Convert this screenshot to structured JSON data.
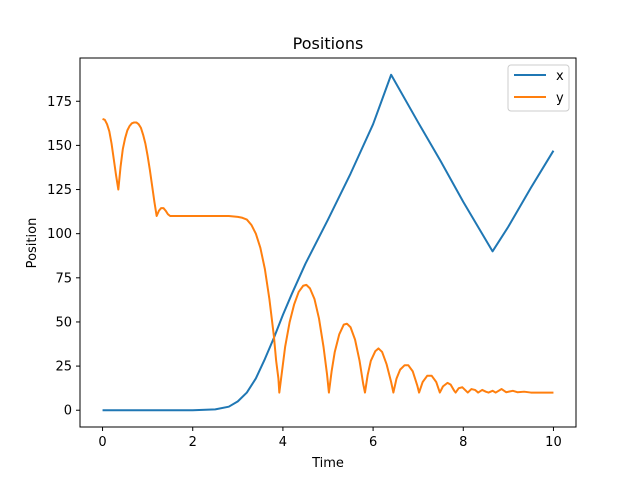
{
  "chart_data": {
    "type": "line",
    "title": "Positions",
    "xlabel": "Time",
    "ylabel": "Position",
    "xlim": [
      -0.5,
      10.5
    ],
    "ylim": [
      -9.5,
      199.5
    ],
    "xticks": [
      0,
      2,
      4,
      6,
      8,
      10
    ],
    "yticks": [
      0,
      25,
      50,
      75,
      100,
      125,
      150,
      175
    ],
    "grid": false,
    "legend_position": "top-right",
    "series": [
      {
        "name": "x",
        "color": "#1f77b4",
        "points": [
          [
            0,
            0
          ],
          [
            1,
            0
          ],
          [
            2,
            0
          ],
          [
            2.5,
            0.5
          ],
          [
            2.8,
            2
          ],
          [
            3.0,
            5
          ],
          [
            3.2,
            10
          ],
          [
            3.4,
            18
          ],
          [
            3.6,
            29
          ],
          [
            3.8,
            41
          ],
          [
            4.0,
            54
          ],
          [
            4.2,
            66
          ],
          [
            4.5,
            83
          ],
          [
            5.0,
            108
          ],
          [
            5.5,
            134
          ],
          [
            6.0,
            162
          ],
          [
            6.4,
            190
          ],
          [
            7.0,
            163
          ],
          [
            7.5,
            141
          ],
          [
            8.0,
            118
          ],
          [
            8.65,
            90
          ],
          [
            9.0,
            104
          ],
          [
            9.5,
            126
          ],
          [
            10.0,
            147
          ]
        ]
      },
      {
        "name": "y",
        "color": "#ff7f0e",
        "points": [
          [
            0,
            165
          ],
          [
            0.05,
            164.5
          ],
          [
            0.1,
            162
          ],
          [
            0.15,
            158
          ],
          [
            0.2,
            151
          ],
          [
            0.25,
            142
          ],
          [
            0.3,
            133
          ],
          [
            0.35,
            125
          ],
          [
            0.4,
            138
          ],
          [
            0.45,
            148
          ],
          [
            0.5,
            154
          ],
          [
            0.55,
            158.5
          ],
          [
            0.6,
            161
          ],
          [
            0.65,
            162.5
          ],
          [
            0.7,
            163
          ],
          [
            0.75,
            163
          ],
          [
            0.8,
            162
          ],
          [
            0.85,
            160
          ],
          [
            0.9,
            156
          ],
          [
            0.95,
            151
          ],
          [
            1.0,
            144
          ],
          [
            1.05,
            136
          ],
          [
            1.1,
            127
          ],
          [
            1.15,
            118
          ],
          [
            1.2,
            110
          ],
          [
            1.25,
            113
          ],
          [
            1.3,
            114.5
          ],
          [
            1.35,
            114.5
          ],
          [
            1.4,
            113
          ],
          [
            1.45,
            111
          ],
          [
            1.5,
            110
          ],
          [
            2.0,
            110
          ],
          [
            2.5,
            110
          ],
          [
            2.8,
            110
          ],
          [
            3.0,
            109.5
          ],
          [
            3.1,
            109
          ],
          [
            3.2,
            108
          ],
          [
            3.3,
            105
          ],
          [
            3.4,
            100
          ],
          [
            3.5,
            92
          ],
          [
            3.6,
            80
          ],
          [
            3.7,
            63
          ],
          [
            3.8,
            42
          ],
          [
            3.85,
            28
          ],
          [
            3.9,
            18
          ],
          [
            3.92,
            10
          ],
          [
            3.98,
            22
          ],
          [
            4.05,
            36
          ],
          [
            4.15,
            50
          ],
          [
            4.25,
            60
          ],
          [
            4.35,
            67
          ],
          [
            4.45,
            70.5
          ],
          [
            4.52,
            71
          ],
          [
            4.6,
            69
          ],
          [
            4.7,
            63
          ],
          [
            4.8,
            52
          ],
          [
            4.9,
            36
          ],
          [
            4.98,
            20
          ],
          [
            5.02,
            10
          ],
          [
            5.08,
            22
          ],
          [
            5.15,
            33
          ],
          [
            5.25,
            43
          ],
          [
            5.35,
            48.5
          ],
          [
            5.42,
            49
          ],
          [
            5.5,
            47
          ],
          [
            5.6,
            40
          ],
          [
            5.7,
            28
          ],
          [
            5.78,
            15
          ],
          [
            5.82,
            10
          ],
          [
            5.88,
            20
          ],
          [
            5.95,
            28
          ],
          [
            6.05,
            33.5
          ],
          [
            6.12,
            35
          ],
          [
            6.2,
            33
          ],
          [
            6.3,
            26
          ],
          [
            6.4,
            16
          ],
          [
            6.45,
            10
          ],
          [
            6.52,
            18
          ],
          [
            6.6,
            23
          ],
          [
            6.7,
            25.5
          ],
          [
            6.78,
            25.5
          ],
          [
            6.88,
            22
          ],
          [
            6.98,
            14
          ],
          [
            7.02,
            10
          ],
          [
            7.1,
            16
          ],
          [
            7.2,
            19.5
          ],
          [
            7.3,
            19.5
          ],
          [
            7.4,
            16
          ],
          [
            7.48,
            10
          ],
          [
            7.55,
            13.5
          ],
          [
            7.65,
            15.5
          ],
          [
            7.72,
            14.5
          ],
          [
            7.8,
            11
          ],
          [
            7.83,
            10
          ],
          [
            7.9,
            12.5
          ],
          [
            7.98,
            13
          ],
          [
            8.06,
            11
          ],
          [
            8.1,
            10
          ],
          [
            8.18,
            12
          ],
          [
            8.26,
            11.5
          ],
          [
            8.33,
            10
          ],
          [
            8.42,
            11.5
          ],
          [
            8.5,
            10.5
          ],
          [
            8.56,
            10
          ],
          [
            8.65,
            11
          ],
          [
            8.72,
            10
          ],
          [
            8.85,
            12
          ],
          [
            8.95,
            10.2
          ],
          [
            9.1,
            11
          ],
          [
            9.2,
            10.2
          ],
          [
            9.35,
            10.5
          ],
          [
            9.5,
            10
          ],
          [
            10.0,
            10
          ]
        ]
      }
    ]
  }
}
